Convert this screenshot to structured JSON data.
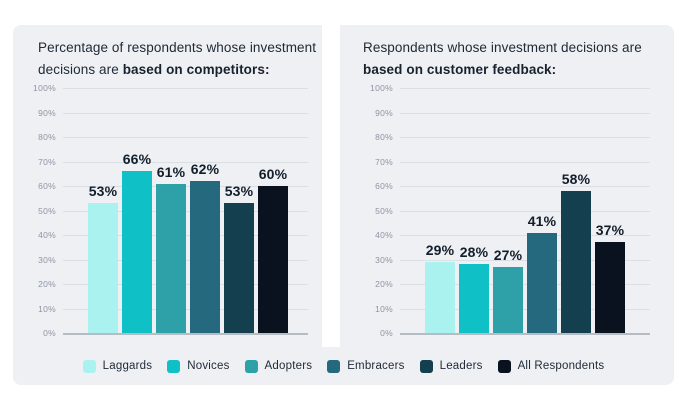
{
  "page": {
    "background": "#ffffff",
    "card_background": "#eef0f3",
    "title_color": "#202b38",
    "axis_label_color": "#8d94a5",
    "gridline_color": "#dbdee3",
    "baseline_color": "#b5bcc4",
    "data_label_color": "#121e2b"
  },
  "charts": [
    {
      "title_regular": "Percentage of respondents whose investment decisions are ",
      "title_bold": "based on competitors:"
    },
    {
      "title_regular": "Respondents whose investment decisions are ",
      "title_bold": "based on customer feedback:"
    }
  ],
  "chart_data": [
    {
      "type": "bar",
      "title": "Percentage of respondents whose investment decisions are based on competitors:",
      "categories": [
        "Laggards",
        "Novices",
        "Adopters",
        "Embracers",
        "Leaders",
        "All Respondents"
      ],
      "values": [
        53,
        66,
        61,
        62,
        53,
        60
      ],
      "labels": [
        "53%",
        "66%",
        "61%",
        "62%",
        "53%",
        "60%"
      ],
      "xlabel": "",
      "ylabel": "",
      "ylim": [
        0,
        100
      ],
      "ytick_labels": [
        "100%",
        "90%",
        "80%",
        "70%",
        "60%",
        "50%",
        "40%",
        "30%",
        "20%",
        "10%",
        "0%"
      ],
      "grid": true,
      "legend_position": "bottom"
    },
    {
      "type": "bar",
      "title": "Respondents whose investment decisions are based on customer feedback:",
      "categories": [
        "Laggards",
        "Novices",
        "Adopters",
        "Embracers",
        "Leaders",
        "All Respondents"
      ],
      "values": [
        29,
        28,
        27,
        41,
        58,
        37
      ],
      "labels": [
        "29%",
        "28%",
        "27%",
        "41%",
        "58%",
        "37%"
      ],
      "xlabel": "",
      "ylabel": "",
      "ylim": [
        0,
        100
      ],
      "ytick_labels": [
        "100%",
        "90%",
        "80%",
        "70%",
        "60%",
        "50%",
        "40%",
        "30%",
        "20%",
        "10%",
        "0%"
      ],
      "grid": true,
      "legend_position": "bottom"
    }
  ],
  "legend": {
    "items": [
      {
        "label": "Laggards",
        "color": "#a9f2ef"
      },
      {
        "label": "Novices",
        "color": "#10c0c7"
      },
      {
        "label": "Adopters",
        "color": "#2da0a8"
      },
      {
        "label": "Embracers",
        "color": "#25697f"
      },
      {
        "label": "Leaders",
        "color": "#143f4e"
      },
      {
        "label": "All Respondents",
        "color": "#0a1220"
      }
    ]
  }
}
